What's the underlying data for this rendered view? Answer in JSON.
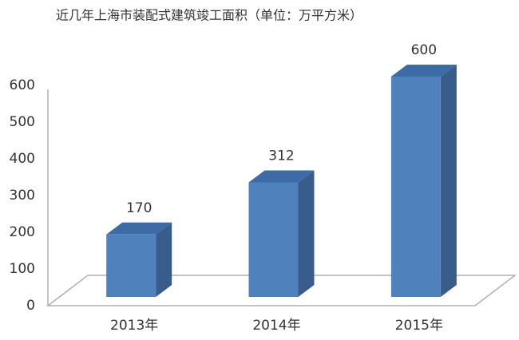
{
  "chart_data": {
    "type": "bar3d",
    "title": "近几年上海市装配式建筑竣工面积（单位：万平方米）",
    "categories": [
      "2013年",
      "2014年",
      "2015年"
    ],
    "values": [
      170,
      312,
      600
    ],
    "color": "#4f81bd",
    "ylim": [
      0,
      600
    ],
    "yticks": [
      0,
      100,
      200,
      300,
      400,
      500,
      600
    ],
    "grid": false
  }
}
